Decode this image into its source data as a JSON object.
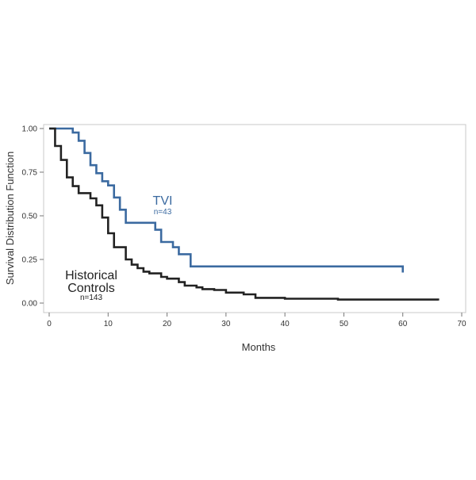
{
  "chart_data": {
    "type": "line",
    "title": "",
    "xlabel": "Months",
    "ylabel": "Survival Distribution Function",
    "xlim": [
      0,
      70
    ],
    "ylim": [
      0,
      1
    ],
    "x_ticks": [
      "0",
      "10",
      "20",
      "30",
      "40",
      "50",
      "60",
      "70"
    ],
    "y_ticks": [
      "0.00",
      "0.25",
      "0.50",
      "0.75",
      "1.00"
    ],
    "grid": false,
    "legend": "none",
    "series": [
      {
        "key": "tvi",
        "color": "#3b6aa0",
        "label": "TVI",
        "n_label": "n=43",
        "x": [
          0,
          4,
          5,
          6,
          7,
          8,
          9,
          10,
          11,
          12,
          13,
          17,
          18,
          19,
          21,
          22,
          24,
          60
        ],
        "y": [
          1.0,
          0.977,
          0.93,
          0.86,
          0.79,
          0.744,
          0.698,
          0.674,
          0.605,
          0.535,
          0.46,
          0.46,
          0.42,
          0.35,
          0.32,
          0.28,
          0.21,
          0.175
        ]
      },
      {
        "key": "historical",
        "color": "#222222",
        "label_line1": "Historical",
        "label_line2": "Controls",
        "n_label": "n=143",
        "x": [
          0,
          1,
          2,
          3,
          4,
          5,
          7,
          8,
          9,
          10,
          11,
          13,
          14,
          15,
          16,
          17,
          19,
          20,
          22,
          23,
          25,
          26,
          28,
          30,
          33,
          35,
          40,
          49,
          66
        ],
        "y": [
          1.0,
          0.9,
          0.82,
          0.72,
          0.67,
          0.63,
          0.6,
          0.56,
          0.49,
          0.4,
          0.32,
          0.25,
          0.22,
          0.2,
          0.18,
          0.17,
          0.15,
          0.14,
          0.12,
          0.1,
          0.09,
          0.08,
          0.075,
          0.06,
          0.05,
          0.03,
          0.025,
          0.02,
          0.015
        ]
      }
    ]
  }
}
